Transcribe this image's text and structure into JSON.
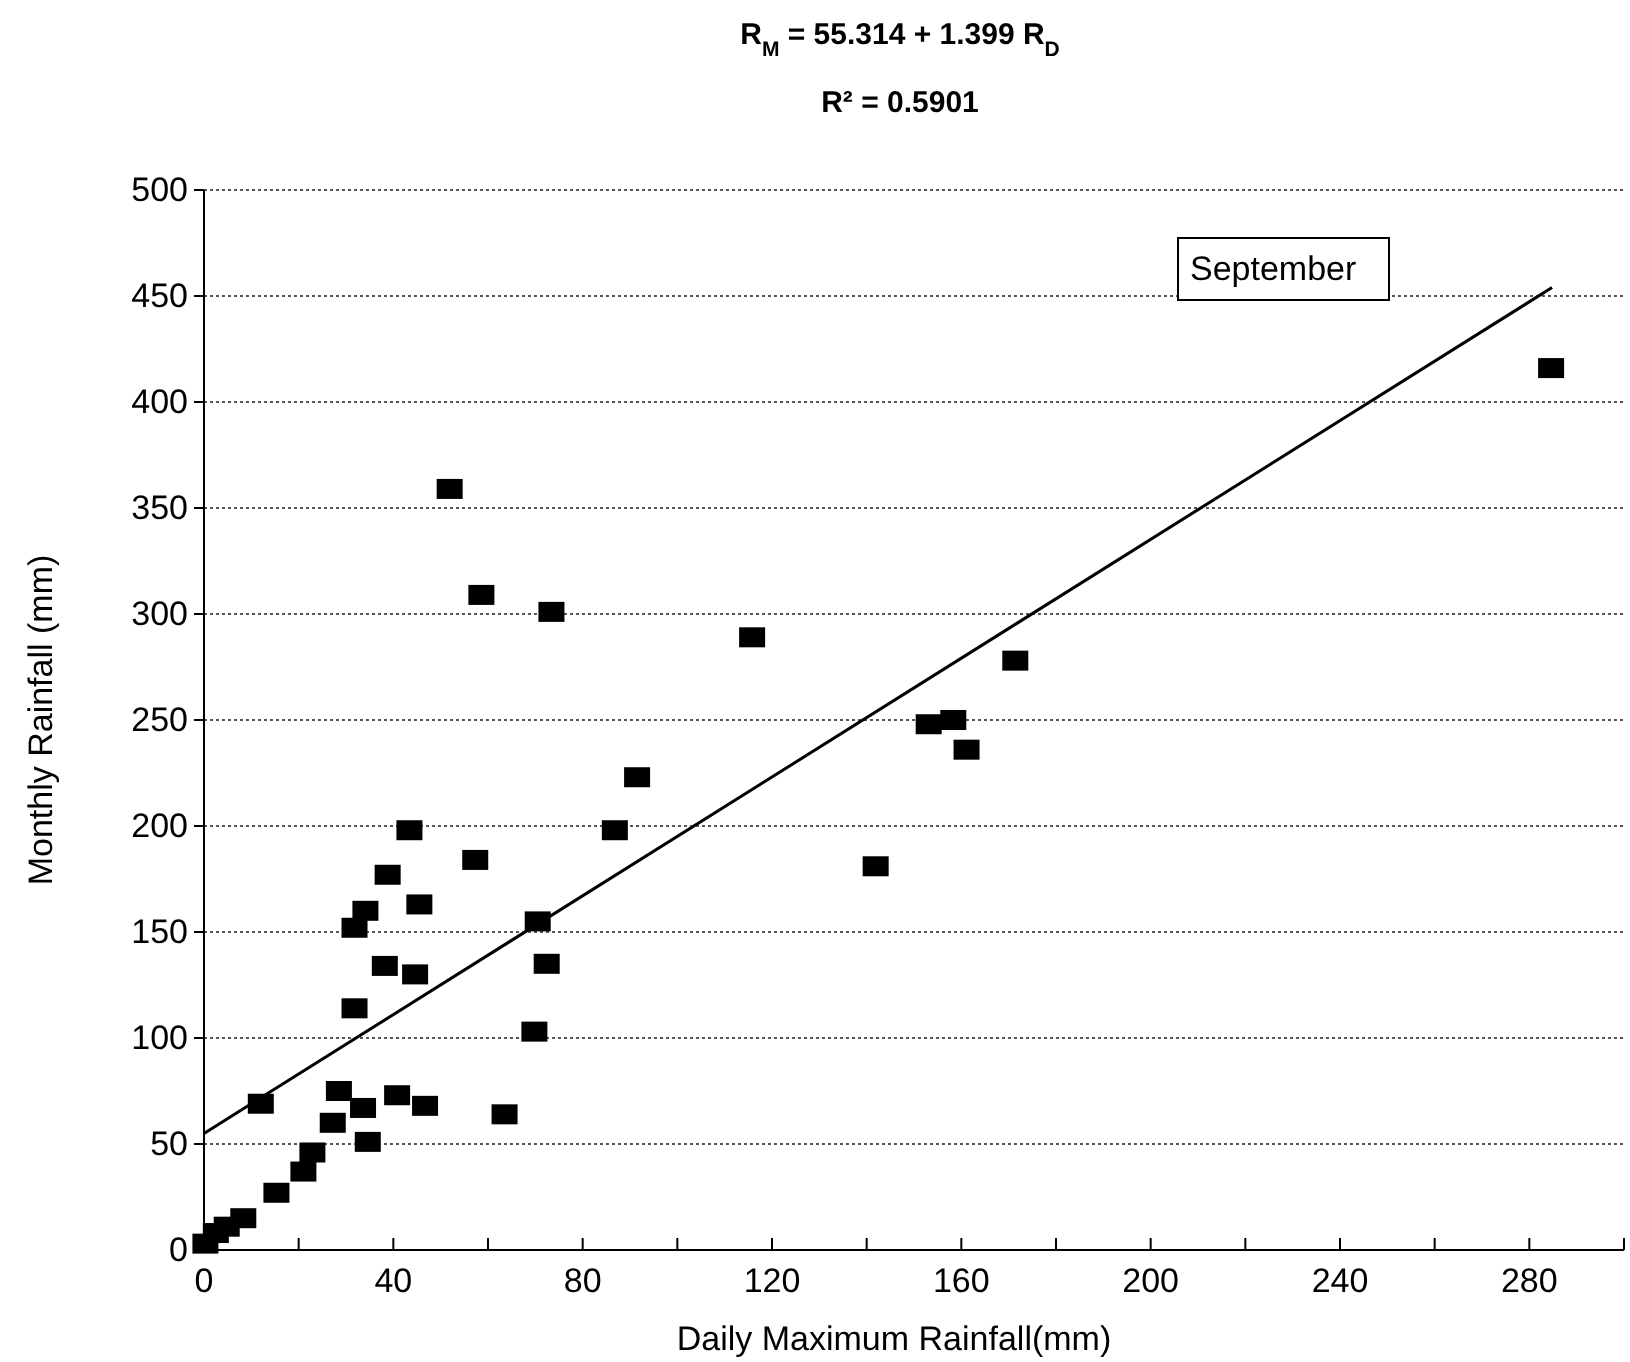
{
  "chart_data": {
    "type": "scatter",
    "title": "R$_{M}$ = 55.314 + 1.399 R$_{D}$",
    "subtitle": "R² = 0.5901",
    "xlabel": "Daily Maximum Rainfall(mm)",
    "ylabel": "Monthly Rainfall (mm)",
    "annotations": [
      "September"
    ],
    "xlim": [
      0,
      300
    ],
    "xticks": [
      0,
      {
        "value": 20,
        "label": null
      },
      40,
      {
        "value": 60,
        "label": null
      },
      80,
      {
        "value": 100,
        "label": null
      },
      120,
      {
        "value": 140,
        "label": null
      },
      160,
      {
        "value": 180,
        "label": null
      },
      200,
      {
        "value": 220,
        "label": null
      },
      240,
      {
        "value": 260,
        "label": null
      },
      280,
      {
        "value": 300,
        "label": null
      }
    ],
    "ylim": [
      0,
      500
    ],
    "yticks": [
      0,
      50,
      100,
      150,
      200,
      250,
      300,
      350,
      400,
      450,
      500
    ],
    "grid": "y",
    "marker": "square",
    "series": [
      {
        "color": "#000000",
        "x": [
          51.9,
          58.6,
          73.4,
          91.5,
          43.4,
          86.8,
          38.8,
          57.3,
          34.1,
          45.5,
          31.8,
          70.5,
          38.2,
          44.6,
          72.4,
          31.8,
          69.8,
          12,
          28.5,
          33.6,
          40.8,
          46.7,
          63.5,
          27.2,
          34.6,
          22.9,
          21,
          15.3,
          8.3,
          4.8,
          0.7,
          0.3,
          2.5,
          284.6,
          115.8,
          171.4,
          153.1,
          158.3,
          161.1,
          141.9
        ],
        "values": [
          359,
          309,
          301,
          223,
          198,
          198,
          177,
          184,
          160,
          163,
          152,
          155,
          134,
          130,
          135,
          114,
          103,
          69,
          75,
          67,
          73,
          68,
          64,
          60,
          51,
          46,
          37,
          27,
          15,
          11,
          null,
          3,
          8,
          416,
          289,
          278,
          248,
          250,
          236,
          181
        ]
      },
      {
        "type": "line",
        "color": "#000000",
        "marker": "none",
        "line_style": "solid",
        "x": [
          0,
          284.8
        ],
        "values": [
          55,
          454
        ]
      }
    ]
  }
}
